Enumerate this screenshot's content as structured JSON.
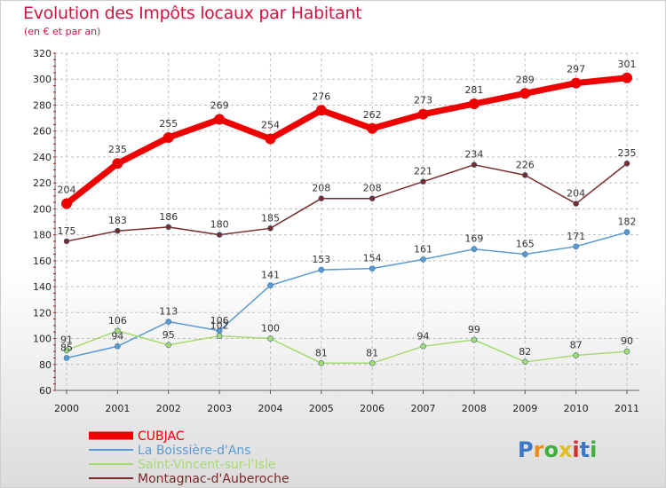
{
  "header": {
    "title": "Evolution des Impôts locaux par Habitant",
    "subtitle": "(en € et par an)"
  },
  "logo": {
    "text": "Proxiti",
    "letters": [
      "P",
      "r",
      "o",
      "x",
      "i",
      "t",
      "i"
    ]
  },
  "colors": {
    "title": "#d4143e",
    "CUBJAC": "#ee0000",
    "La Boissière-d'Ans": "#5b9bd5",
    "Saint-Vincent-sur-l'Isle": "#a6dc6e",
    "Montagnac-d'Auberoche": "#7a2a2a",
    "grid": "#bfbfbf",
    "axis_ticks": "#cc0000"
  },
  "chart_data": {
    "type": "line",
    "title": "Evolution des Impôts locaux par Habitant",
    "subtitle": "(en € et par an)",
    "xlabel": "",
    "ylabel": "",
    "categories": [
      "2000",
      "2001",
      "2002",
      "2003",
      "2004",
      "2005",
      "2006",
      "2007",
      "2008",
      "2009",
      "2010",
      "2011"
    ],
    "y_ticks": [
      60,
      80,
      100,
      120,
      140,
      160,
      180,
      200,
      220,
      240,
      260,
      280,
      300,
      320
    ],
    "ylim": [
      60,
      320
    ],
    "grid": "horizontal dashed",
    "legend_position": "bottom-left",
    "series": [
      {
        "name": "CUBJAC",
        "values": [
          204,
          235,
          255,
          269,
          254,
          276,
          262,
          273,
          281,
          289,
          297,
          301
        ],
        "color": "#ee0000",
        "width": 7,
        "marker": 6
      },
      {
        "name": "La Boissière-d'Ans",
        "values": [
          85,
          94,
          113,
          106,
          141,
          153,
          154,
          161,
          169,
          165,
          171,
          182
        ],
        "color": "#5b9bd5",
        "width": 1.5,
        "marker": 3
      },
      {
        "name": "Saint-Vincent-sur-l'Isle",
        "values": [
          91,
          106,
          95,
          102,
          100,
          81,
          81,
          94,
          99,
          82,
          87,
          90
        ],
        "color": "#a6dc6e",
        "width": 1.5,
        "marker": 3
      },
      {
        "name": "Montagnac-d'Auberoche",
        "values": [
          175,
          183,
          186,
          180,
          185,
          208,
          208,
          221,
          234,
          226,
          204,
          235
        ],
        "color": "#7a2a2a",
        "width": 1.5,
        "marker": 3
      }
    ],
    "data_labels": {
      "CUBJAC": [
        "204",
        "235",
        "255",
        "269",
        "254",
        "276",
        "262",
        "273",
        "281",
        "289",
        "297",
        "301"
      ],
      "La Boissière-d'Ans": [
        "85",
        "94",
        "113",
        "106",
        "141",
        "153",
        "154",
        "161",
        "169",
        "165",
        "171",
        "182"
      ],
      "Saint-Vincent-sur-l'Isle": [
        "91",
        "106",
        "95",
        "102",
        "100",
        "81",
        "81",
        "94",
        "99",
        "82",
        "87",
        "90"
      ],
      "Montagnac-d'Auberoche": [
        "175",
        "183",
        "186",
        "180",
        "185",
        "208",
        "208",
        "221",
        "234",
        "226",
        "204",
        "235"
      ]
    }
  }
}
